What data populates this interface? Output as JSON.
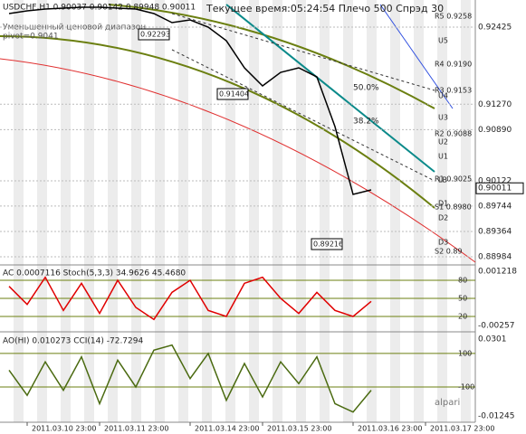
{
  "chart_data": [
    {
      "type": "line",
      "title": "USDCHF,H1  0.90037 0.90142 0.89948 0.90011",
      "subtitle": "Текущее время:05:24:54 Плечо 500 Спрэд 30",
      "categories": [
        null,
        "2011.03.10 23:00",
        null,
        null,
        null,
        "2011.03.11 23:00",
        null,
        null,
        null,
        null,
        "2011.03.14 23:00",
        null,
        null,
        null,
        "2011.03.15 23:00",
        null,
        null,
        null,
        null,
        "2011.03.16 23:00",
        null,
        null,
        null,
        "2011.03.17 23:00",
        null
      ],
      "values": [
        0.92629,
        0.92669,
        0.92697,
        0.9271,
        0.92724,
        0.92724,
        0.9271,
        0.92697,
        0.92629,
        0.92493,
        0.92534,
        0.92425,
        0.92222,
        0.91816,
        0.91545,
        0.91748,
        0.91816,
        0.9168,
        0.90935,
        0.89919,
        0.89987,
        null,
        null,
        null,
        null
      ],
      "color": "#000000",
      "ylim": [
        0.88876,
        0.92832
      ],
      "yticks": [
        0.92425,
        {
          "value": 0.9127,
          "label": "0.91270"
        },
        {
          "value": 0.9089,
          "label": "0.90890"
        },
        0.90122,
        0.89744,
        0.89364,
        0.88984
      ],
      "current_price": 0.90011
    },
    {
      "type": "line",
      "title": "AC 0.0007116  Stoch(5,3,3) 34.9626 45.4680",
      "categories": [
        null,
        null,
        null,
        null,
        null,
        null,
        null,
        null,
        null,
        null,
        null,
        null,
        null,
        null,
        null,
        null,
        null,
        null,
        null,
        null,
        null,
        null,
        null,
        null,
        null
      ],
      "values": [
        70,
        40,
        85,
        30,
        75,
        25,
        80,
        35,
        15,
        60,
        80,
        30,
        20,
        75,
        85,
        50,
        25,
        60,
        30,
        20,
        45,
        null,
        null,
        null,
        null
      ],
      "color": "#e00000",
      "ylim": [
        -2.5,
        102.5
      ],
      "yticks": [
        80,
        50,
        20
      ],
      "right_labels": [
        "0.001218",
        "-0.00257"
      ]
    },
    {
      "type": "line",
      "title": "AO(HI) 0.010273  CCI(14) -72.7294",
      "categories": [
        null,
        null,
        null,
        null,
        null,
        null,
        null,
        null,
        null,
        null,
        null,
        null,
        null,
        null,
        null,
        null,
        null,
        null,
        null,
        null,
        null,
        null,
        null,
        null,
        null
      ],
      "values": [
        0,
        -150,
        50,
        -120,
        80,
        -200,
        60,
        -100,
        120,
        150,
        -50,
        100,
        -180,
        40,
        -160,
        50,
        -80,
        80,
        -200,
        -250,
        -120,
        null,
        null,
        null,
        null
      ],
      "color": "#4a6a10",
      "ylim": [
        -300,
        213
      ],
      "yticks": [
        100,
        -100
      ],
      "right_labels": [
        "0.0301",
        "-0.01245"
      ]
    }
  ],
  "labels": {
    "range_note": "Уменьшенный ценовой диапазон",
    "pivot": "pivot=0.9041",
    "levels": [
      "R5 0.9258",
      "U5",
      "R4 0.9190",
      "R3 0.9153",
      "U4",
      "U3",
      "R2 0.9088",
      "U2",
      "U1",
      "R1 0.9025",
      "LB",
      "S1 0.8980",
      "D1",
      "D2",
      "D3",
      "S2 0.89"
    ],
    "fib": [
      "50.0%",
      "38.2%"
    ],
    "boxes": [
      "0.92293",
      "0.91404",
      "0.89216"
    ],
    "logo": "alpari"
  }
}
